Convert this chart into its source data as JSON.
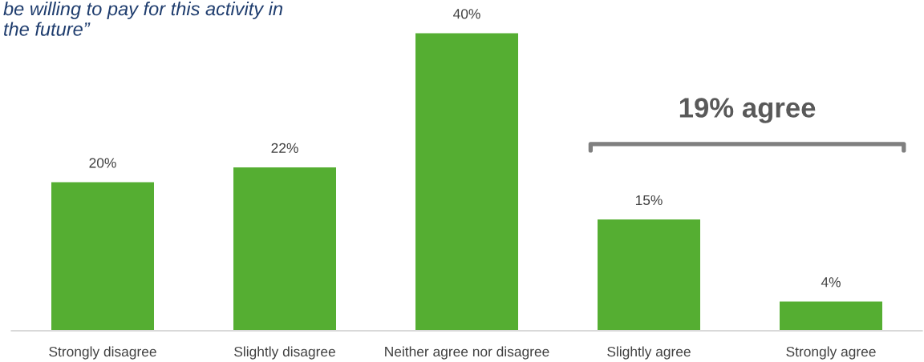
{
  "chart_data": {
    "type": "bar",
    "title": "be willing to pay for this activity in\nthe future”",
    "categories": [
      "Strongly disagree",
      "Slightly disagree",
      "Neither agree nor disagree",
      "Slightly agree",
      "Strongly agree"
    ],
    "values": [
      20,
      22,
      40,
      15,
      4
    ],
    "value_labels": [
      "20%",
      "22%",
      "40%",
      "15%",
      "4%"
    ],
    "color": "#55ae32",
    "annotations": [
      "19% agree"
    ]
  }
}
